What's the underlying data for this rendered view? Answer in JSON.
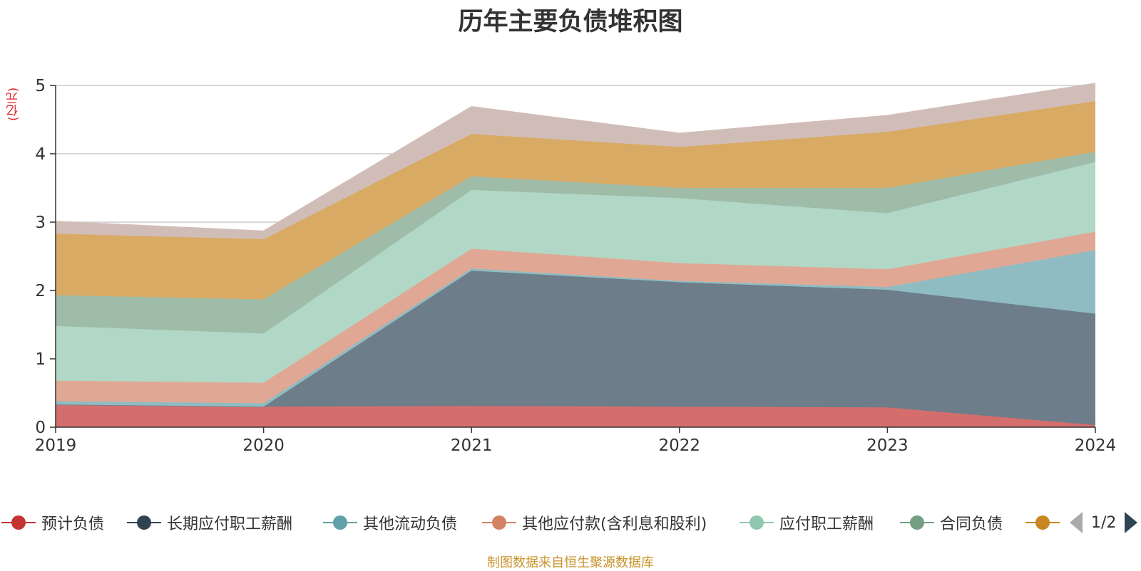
{
  "chart_data": {
    "type": "area",
    "stacked": true,
    "title": "历年主要负债堆积图",
    "unit_label": "(亿元)",
    "x": [
      "2019",
      "2020",
      "2021",
      "2022",
      "2023",
      "2024"
    ],
    "ylim": [
      0,
      5
    ],
    "yticks": [
      "0",
      "1",
      "2",
      "3",
      "4",
      "5"
    ],
    "grid": true,
    "series": [
      {
        "name": "预计负债",
        "color": "#c23531",
        "fill": "#d46e6c",
        "values": [
          0.33,
          0.3,
          0.31,
          0.3,
          0.29,
          0.03
        ]
      },
      {
        "name": "长期应付职工薪酬",
        "color": "#2f4554",
        "fill": "#6d7d89",
        "values": [
          0.0,
          0.0,
          1.98,
          1.82,
          1.72,
          1.63
        ]
      },
      {
        "name": "其他流动负债",
        "color": "#61a0a8",
        "fill": "#8fbcc2",
        "values": [
          0.05,
          0.05,
          0.03,
          0.02,
          0.04,
          0.93
        ]
      },
      {
        "name": "其他应付款(含利息和股利)",
        "color": "#d48265",
        "fill": "#e0a894",
        "values": [
          0.3,
          0.3,
          0.29,
          0.26,
          0.26,
          0.27
        ]
      },
      {
        "name": "应付职工薪酬",
        "color": "#91c7ae",
        "fill": "#b1d8c6",
        "values": [
          0.8,
          0.72,
          0.86,
          0.95,
          0.82,
          1.02
        ]
      },
      {
        "name": "合同负债",
        "color": "#749f83",
        "fill": "#9fbca9",
        "values": [
          0.45,
          0.5,
          0.2,
          0.15,
          0.37,
          0.15
        ]
      },
      {
        "name": "",
        "color": "#ca8622",
        "fill": "#d9aa64",
        "values": [
          0.9,
          0.88,
          0.62,
          0.6,
          0.82,
          0.74
        ]
      },
      {
        "name": "",
        "color": "#bda29a",
        "fill": "#d1bdb8",
        "values": [
          0.18,
          0.12,
          0.4,
          0.2,
          0.24,
          0.26
        ]
      }
    ]
  },
  "legend": {
    "page": "1/2"
  },
  "source": "制图数据来自恒生聚源数据库"
}
